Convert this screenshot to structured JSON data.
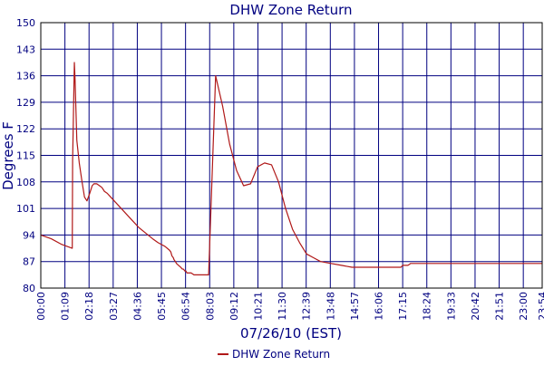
{
  "chart_data": {
    "type": "line",
    "title": "DHW Zone Return",
    "xlabel": "07/26/10 (EST)",
    "ylabel": "Degrees F",
    "ylim": [
      80,
      150
    ],
    "yticks": [
      80,
      87,
      94,
      101,
      108,
      115,
      122,
      129,
      136,
      143,
      150
    ],
    "xlim": [
      0,
      1434
    ],
    "x_unit": "minutes",
    "xticks": [
      0,
      69,
      138,
      207,
      276,
      345,
      414,
      483,
      552,
      621,
      690,
      759,
      828,
      897,
      966,
      1035,
      1104,
      1173,
      1242,
      1311,
      1380,
      1434
    ],
    "xtick_labels": [
      "00:00",
      "01:09",
      "02:18",
      "03:27",
      "04:36",
      "05:45",
      "06:54",
      "08:03",
      "09:12",
      "10:21",
      "11:30",
      "12:39",
      "13:48",
      "14:57",
      "16:06",
      "17:15",
      "18:24",
      "19:33",
      "20:42",
      "21:51",
      "23:00",
      "23:54"
    ],
    "grid": true,
    "legend_position": "bottom",
    "colors": {
      "series": "#b01818",
      "grid": "#000080",
      "text": "#000080",
      "frame": "#000000"
    },
    "series": [
      {
        "name": "DHW Zone Return",
        "x": [
          0,
          30,
          60,
          90,
          91,
          96,
          98,
          103,
          110,
          118,
          125,
          132,
          140,
          147,
          152,
          160,
          168,
          175,
          182,
          190,
          200,
          215,
          240,
          260,
          280,
          300,
          320,
          335,
          345,
          355,
          368,
          372,
          375,
          379,
          381,
          385,
          388,
          394,
          400,
          405,
          408,
          412,
          415,
          418,
          422,
          430,
          438,
          445,
          450,
          455,
          465,
          480,
          500,
          520,
          540,
          560,
          580,
          600,
          620,
          640,
          660,
          680,
          700,
          720,
          740,
          760,
          780,
          800,
          830,
          860,
          890,
          920,
          950,
          980,
          1010,
          1030,
          1035,
          1036,
          1037,
          1040,
          1045,
          1050,
          1058,
          1062,
          1067,
          1072,
          1078,
          1082,
          1088,
          1093,
          1098,
          1105,
          1115,
          1125,
          1135,
          1140,
          1145,
          1155,
          1170,
          1190,
          1210,
          1230,
          1250,
          1270,
          1290,
          1310,
          1330,
          1350,
          1380,
          1410,
          1434
        ],
        "y": [
          94,
          93,
          91.5,
          90.5,
          113.5,
          139.5,
          135,
          119,
          113,
          108,
          104,
          103,
          105,
          107,
          107.5,
          107.5,
          107,
          106.5,
          105.5,
          105,
          104,
          102.5,
          100,
          98,
          96,
          94.5,
          93,
          92,
          91.5,
          91,
          90,
          89.5,
          88.5,
          88,
          87.5,
          87,
          86.5,
          86,
          85.5,
          85,
          85,
          84.5,
          84.5,
          84,
          84,
          84,
          83.5,
          83.5,
          83.5,
          83.5,
          83.5,
          83.5,
          136,
          128,
          118,
          111,
          107,
          107.5,
          112,
          113,
          112.5,
          108,
          101,
          95.5,
          92,
          89,
          88,
          87,
          86.5,
          86,
          85.5,
          85.5,
          85.5,
          85.5,
          85.5,
          85.5,
          86,
          86,
          86,
          86,
          86,
          86,
          86.5,
          86.5,
          86.5,
          86.5,
          86.5,
          86.5,
          86.5,
          86.5,
          86.5,
          86.5,
          86.5,
          86.5,
          86.5,
          86.5,
          86.5,
          86.5,
          86.5,
          86.5,
          86.5,
          86.5,
          86.5,
          86.5,
          86.5,
          86.5,
          86.5,
          86.5,
          86.5,
          86.5,
          86.5
        ]
      }
    ]
  }
}
